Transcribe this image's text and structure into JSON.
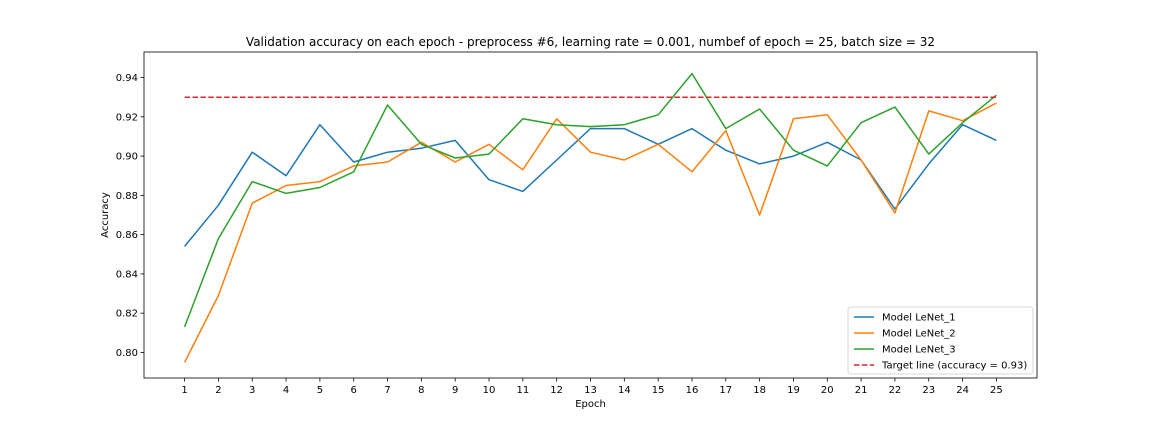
{
  "chart_data": {
    "type": "line",
    "title": "Validation accuracy on each epoch - preprocess #6, learning rate = 0.001, numbef of epoch = 25, batch size = 32",
    "xlabel": "Epoch",
    "ylabel": "Accuracy",
    "x": [
      1,
      2,
      3,
      4,
      5,
      6,
      7,
      8,
      9,
      10,
      11,
      12,
      13,
      14,
      15,
      16,
      17,
      18,
      19,
      20,
      21,
      22,
      23,
      24,
      25
    ],
    "xticks": [
      "1",
      "2",
      "3",
      "4",
      "5",
      "6",
      "7",
      "8",
      "9",
      "10",
      "11",
      "12",
      "13",
      "14",
      "15",
      "16",
      "17",
      "18",
      "19",
      "20",
      "21",
      "22",
      "23",
      "24",
      "25"
    ],
    "yticks": [
      0.8,
      0.82,
      0.84,
      0.86,
      0.88,
      0.9,
      0.92,
      0.94
    ],
    "ytick_labels": [
      "0.80",
      "0.82",
      "0.84",
      "0.86",
      "0.88",
      "0.90",
      "0.92",
      "0.94"
    ],
    "xlim": [
      -0.2,
      26.2
    ],
    "ylim": [
      0.787,
      0.953
    ],
    "grid": false,
    "legend_position": "lower-right",
    "series": [
      {
        "name": "Model LeNet_1",
        "color": "#1f77b4",
        "style": "solid",
        "values": [
          0.854,
          0.875,
          0.902,
          0.89,
          0.916,
          0.897,
          0.902,
          0.904,
          0.908,
          0.888,
          0.882,
          0.898,
          0.914,
          0.914,
          0.906,
          0.914,
          0.903,
          0.896,
          0.9,
          0.907,
          0.898,
          0.873,
          0.896,
          0.916,
          0.908
        ]
      },
      {
        "name": "Model LeNet_2",
        "color": "#ff7f0e",
        "style": "solid",
        "values": [
          0.795,
          0.829,
          0.876,
          0.885,
          0.887,
          0.895,
          0.897,
          0.907,
          0.897,
          0.906,
          0.893,
          0.919,
          0.902,
          0.898,
          0.906,
          0.892,
          0.913,
          0.87,
          0.919,
          0.921,
          0.898,
          0.871,
          0.923,
          0.918,
          0.927
        ]
      },
      {
        "name": "Model LeNet_3",
        "color": "#2ca02c",
        "style": "solid",
        "values": [
          0.813,
          0.858,
          0.887,
          0.881,
          0.884,
          0.892,
          0.926,
          0.906,
          0.899,
          0.901,
          0.919,
          0.916,
          0.915,
          0.916,
          0.921,
          0.942,
          0.914,
          0.924,
          0.903,
          0.895,
          0.917,
          0.925,
          0.901,
          0.917,
          0.931
        ]
      },
      {
        "name": "Target line (accuracy = 0.93)",
        "color": "#d62728",
        "style": "dashed",
        "values": [
          0.93,
          0.93,
          0.93,
          0.93,
          0.93,
          0.93,
          0.93,
          0.93,
          0.93,
          0.93,
          0.93,
          0.93,
          0.93,
          0.93,
          0.93,
          0.93,
          0.93,
          0.93,
          0.93,
          0.93,
          0.93,
          0.93,
          0.93,
          0.93,
          0.93
        ]
      }
    ]
  }
}
